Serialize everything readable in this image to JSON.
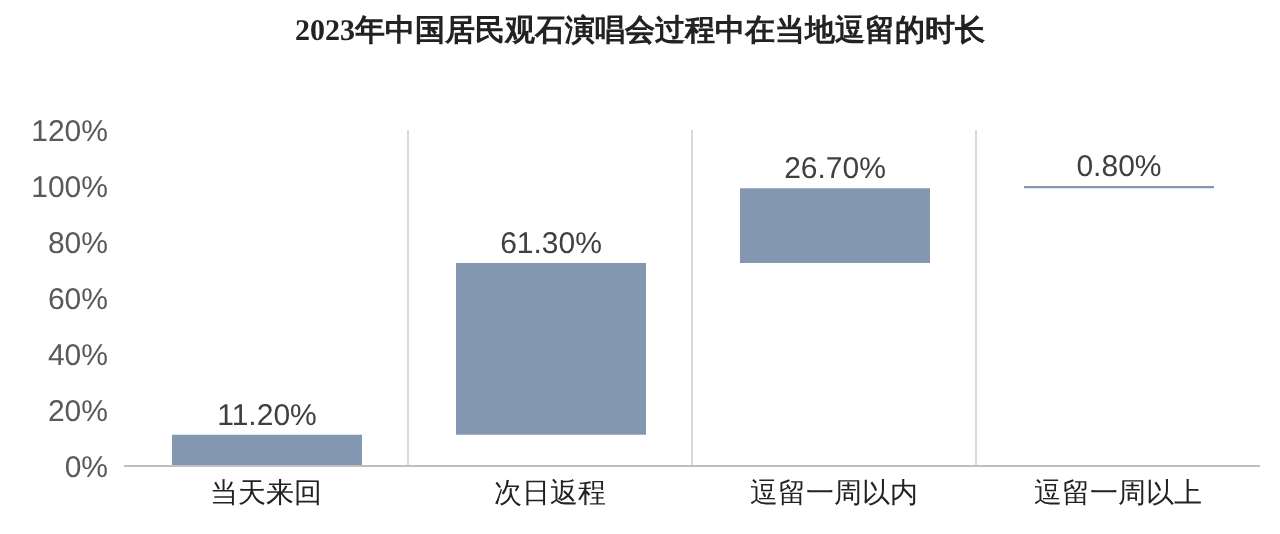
{
  "chart_data": {
    "type": "bar",
    "title": "2023年中国居民观石演唱会过程中在当地逗留的时长",
    "categories": [
      "当天来回",
      "次日返程",
      "逗留一周以内",
      "逗留一周以上"
    ],
    "values": [
      11.2,
      61.3,
      26.7,
      0.8
    ],
    "base": [
      0,
      11.2,
      72.5,
      99.2
    ],
    "color": "#8497b0",
    "value_labels": [
      "11.20%",
      "61.30%",
      "26.70%",
      "0.80%"
    ],
    "ylim": [
      0,
      120
    ],
    "yticks": [
      {
        "value": 0,
        "label": "0%"
      },
      {
        "value": 20,
        "label": "20%"
      },
      {
        "value": 40,
        "label": "40%"
      },
      {
        "value": 60,
        "label": "60%"
      },
      {
        "value": 80,
        "label": "80%"
      },
      {
        "value": 100,
        "label": "100%"
      },
      {
        "value": 120,
        "label": "120%"
      }
    ],
    "grid": "x"
  }
}
